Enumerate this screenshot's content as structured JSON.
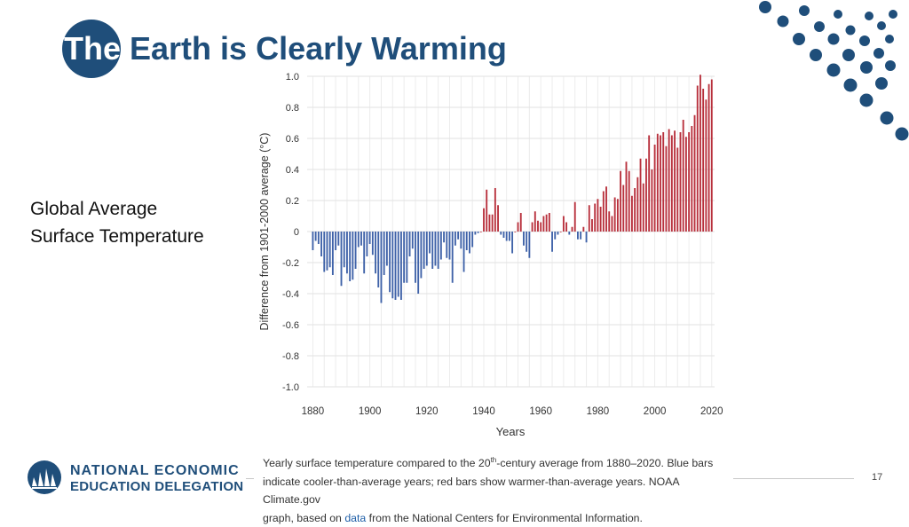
{
  "slide": {
    "title_first": "The",
    "title_rest": " Earth is Clearly Warming",
    "side_label": [
      "Global Average",
      "Surface Temperature"
    ],
    "page_number": "17",
    "colors": {
      "brand": "#1f4e7a",
      "cool_bar": "#3f62a8",
      "warm_bar": "#b8303c"
    }
  },
  "caption": {
    "part1": "Yearly surface temperature compared to the 20",
    "sup": "th",
    "part2": "-century average from 1880–2020. Blue bars",
    "line2": "indicate cooler-than-average years; red bars show warmer-than-average years. NOAA Climate.gov",
    "line3_before": "graph, based on ",
    "line3_link": "data",
    "line3_after": " from the National Centers for Environmental Information."
  },
  "logo": {
    "line1": "NATIONAL ECONOMIC",
    "line2": "EDUCATION DELEGATION",
    "icon": "nation-bars-logo-icon"
  },
  "chart_data": {
    "type": "bar",
    "title": "",
    "xlabel": "Years",
    "ylabel": "Difference from 1901-2000 average (°C)",
    "xlim": [
      1878,
      2021
    ],
    "ylim": [
      -1.0,
      1.0
    ],
    "x_ticks": [
      "1880",
      "1900",
      "1920",
      "1940",
      "1960",
      "1980",
      "2000",
      "2020"
    ],
    "y_ticks": [
      "1.0",
      "0.8",
      "0.6",
      "0.4",
      "0.2",
      "0",
      "-0.2",
      "-0.4",
      "-0.6",
      "-0.8",
      "-1.0"
    ],
    "grid": true,
    "start_year": 1880,
    "values": [
      -0.12,
      -0.06,
      -0.08,
      -0.16,
      -0.26,
      -0.25,
      -0.23,
      -0.28,
      -0.12,
      -0.09,
      -0.35,
      -0.23,
      -0.27,
      -0.32,
      -0.31,
      -0.24,
      -0.1,
      -0.09,
      -0.27,
      -0.16,
      -0.08,
      -0.15,
      -0.27,
      -0.36,
      -0.46,
      -0.28,
      -0.22,
      -0.39,
      -0.43,
      -0.44,
      -0.42,
      -0.44,
      -0.33,
      -0.33,
      -0.16,
      -0.11,
      -0.33,
      -0.4,
      -0.3,
      -0.24,
      -0.22,
      -0.14,
      -0.24,
      -0.22,
      -0.24,
      -0.18,
      -0.07,
      -0.17,
      -0.18,
      -0.33,
      -0.09,
      -0.05,
      -0.11,
      -0.26,
      -0.12,
      -0.14,
      -0.1,
      -0.02,
      -0.01,
      0.0,
      0.15,
      0.27,
      0.11,
      0.11,
      0.28,
      0.17,
      -0.02,
      -0.04,
      -0.06,
      -0.06,
      -0.14,
      0.0,
      0.06,
      0.12,
      -0.09,
      -0.13,
      -0.17,
      0.06,
      0.13,
      0.07,
      0.06,
      0.1,
      0.11,
      0.12,
      -0.13,
      -0.05,
      -0.02,
      0.0,
      0.1,
      0.06,
      -0.02,
      0.03,
      0.19,
      -0.05,
      -0.05,
      0.03,
      -0.07,
      0.17,
      0.08,
      0.18,
      0.21,
      0.16,
      0.26,
      0.29,
      0.13,
      0.1,
      0.22,
      0.21,
      0.39,
      0.3,
      0.45,
      0.39,
      0.23,
      0.28,
      0.35,
      0.47,
      0.31,
      0.47,
      0.62,
      0.4,
      0.56,
      0.63,
      0.62,
      0.64,
      0.55,
      0.66,
      0.62,
      0.65,
      0.54,
      0.64,
      0.72,
      0.61,
      0.64,
      0.68,
      0.75,
      0.94,
      1.01,
      0.92,
      0.85,
      0.95,
      0.98
    ]
  }
}
